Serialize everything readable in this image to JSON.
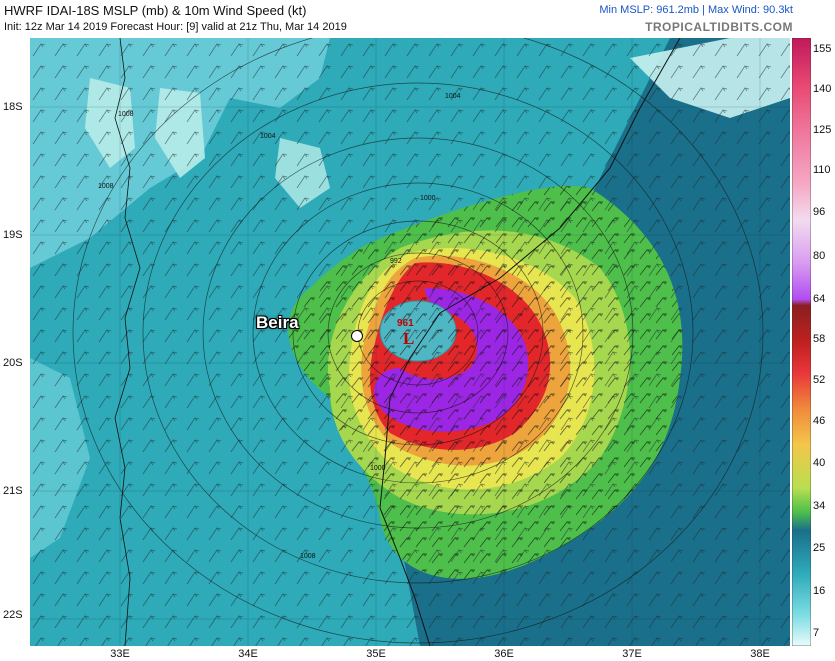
{
  "header": {
    "title": "HWRF IDAI-18S MSLP (mb) & 10m Wind Speed (kt)",
    "subtitle": "Init: 12z Mar 14 2019   Forecast Hour: [9]   valid at 21z Thu, Mar 14 2019",
    "stats": "Min MSLP: 961.2mb  |  Max Wind: 90.3kt",
    "brand": "TROPICALTIDBITS.COM"
  },
  "map": {
    "lat_labels": [
      "18S",
      "19S",
      "20S",
      "21S",
      "22S"
    ],
    "lon_labels": [
      "33E",
      "34E",
      "35E",
      "36E",
      "37E",
      "38E"
    ],
    "city": {
      "name": "Beira"
    },
    "low": {
      "pressure": "961",
      "symbol": "L"
    },
    "isobar_labels": [
      "1008",
      "1008",
      "1004",
      "1000",
      "992",
      "1000",
      "1008",
      "1004"
    ]
  },
  "colorbar": {
    "ticks": [
      "155",
      "140",
      "125",
      "110",
      "96",
      "80",
      "64",
      "58",
      "52",
      "46",
      "40",
      "34",
      "25",
      "16",
      "7"
    ],
    "colors": {
      "land": "#2eaab8",
      "ocean": "#1a6f8a",
      "calm": "#78d8e0",
      "ts_green": "#4dbf4a",
      "yellow": "#e8e650",
      "orange": "#eea43c",
      "red": "#e2262a",
      "purple": "#9b26e3"
    }
  }
}
